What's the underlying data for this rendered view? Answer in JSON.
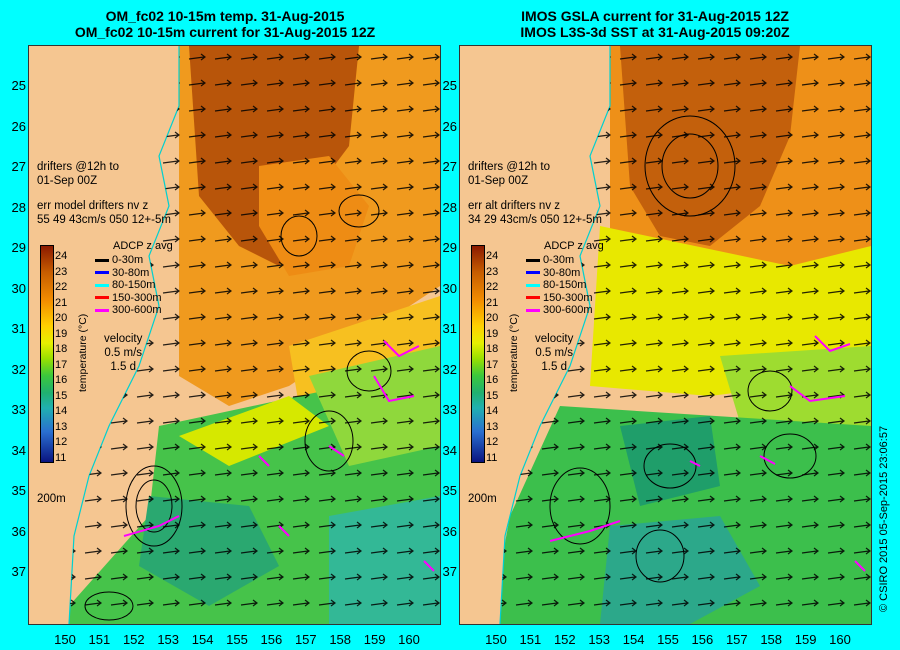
{
  "left_panel": {
    "title_line1": "OM_fc02 10-15m temp. 31-Aug-2015",
    "title_line2": "OM_fc02 10-15m current for 31-Aug-2015 12Z",
    "drifter_line1": "drifters @12h to",
    "drifter_line2": "01-Sep 00Z",
    "err_line1": "err model drifters nv z",
    "err_line2": "55 49 43cm/s 050 12+-5m"
  },
  "right_panel": {
    "title_line1": "IMOS GSLA current for 31-Aug-2015 12Z",
    "title_line2": "IMOS L3S-3d SST at 31-Aug-2015 09:20Z",
    "drifter_line1": "drifters @12h to",
    "drifter_line2": "01-Sep 00Z",
    "err_line1": "err alt drifters nv z",
    "err_line2": "34 29 43cm/s 050 12+-5m"
  },
  "shared": {
    "adcp_title": "ADCP z avg",
    "adcp_items": [
      {
        "label": "0-30m",
        "color": "#000000"
      },
      {
        "label": "30-80m",
        "color": "#0000ff"
      },
      {
        "label": "80-150m",
        "color": "#00ffff"
      },
      {
        "label": "150-300m",
        "color": "#ff0000"
      },
      {
        "label": "300-600m",
        "color": "#ff00ff"
      }
    ],
    "velocity_title": "velocity",
    "velocity_speed": "0.5 m/s",
    "velocity_time": "1.5 d",
    "depth_contour": "200m",
    "colorbar_unit": "temperature (°C)",
    "colorbar_ticks": [
      "24",
      "23",
      "22",
      "21",
      "20",
      "19",
      "18",
      "17",
      "16",
      "15",
      "14",
      "13",
      "12",
      "11"
    ],
    "lat_labels": [
      "25",
      "26",
      "27",
      "28",
      "29",
      "30",
      "31",
      "32",
      "33",
      "34",
      "35",
      "36",
      "37"
    ],
    "lon_labels": [
      "150",
      "151",
      "152",
      "153",
      "154",
      "155",
      "156",
      "157",
      "158",
      "159",
      "160"
    ],
    "footer": "© CSIRO 2015   05-Sep-2015 23:06:57"
  }
}
